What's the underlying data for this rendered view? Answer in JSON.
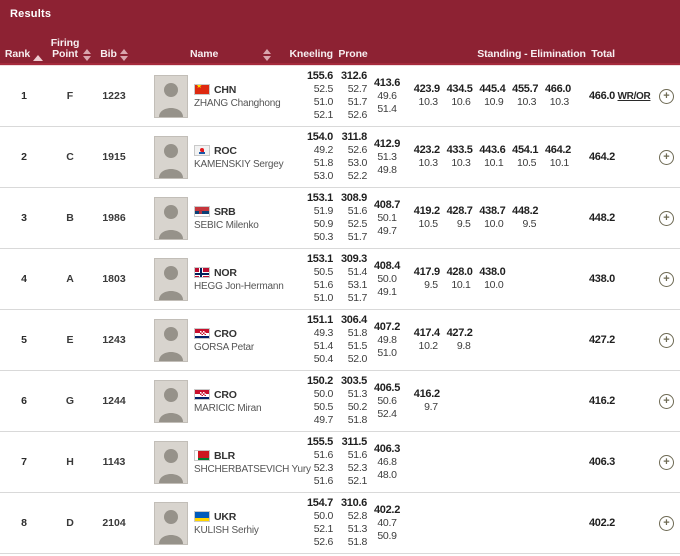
{
  "theme": {
    "header-bg": "#8d2233",
    "header-line": "#a52a3c",
    "pale-line": "#f0dde0",
    "row-line": "#d9d9d9",
    "arrow": "#d9a6ae",
    "arrow-active": "#edccd1",
    "plus": "#6e6a54",
    "num-dark": "#1f1f1f",
    "num-sub": "#3c3c3c",
    "noc-dark": "#333333",
    "name-gray": "#555555",
    "photo-bg": "#d8d4ce",
    "photo-fg": "#96928a"
  },
  "page": {
    "title": "Results"
  },
  "columns": {
    "rank": "Rank",
    "firing_point": "Firing Point",
    "bib": "Bib",
    "name": "Name",
    "kneeling": "Kneeling",
    "prone": "Prone",
    "standing": "Standing - Elimination",
    "total": "Total"
  },
  "icons": {
    "plus": "+",
    "sort": "sort-arrows"
  },
  "rows": [
    {
      "rank": "1",
      "firing_point": "F",
      "bib": "1223",
      "noc": "CHN",
      "name": "ZHANG Changhong",
      "flag": {
        "type": "china",
        "colors": {
          "bg": "#de2910",
          "star": "#ffde00"
        }
      },
      "kneeling": {
        "total": "155.6",
        "series": [
          "52.5",
          "51.0",
          "52.1"
        ]
      },
      "prone": {
        "total": "312.6",
        "series": [
          "52.7",
          "51.7",
          "52.6"
        ]
      },
      "aggregate": {
        "total": "413.6",
        "series": [
          "49.6",
          "51.4"
        ]
      },
      "elimination": [
        {
          "total": "423.9",
          "shot": "10.3"
        },
        {
          "total": "434.5",
          "shot": "10.6"
        },
        {
          "total": "445.4",
          "shot": "10.9"
        },
        {
          "total": "455.7",
          "shot": "10.3"
        },
        {
          "total": "466.0",
          "shot": "10.3"
        }
      ],
      "total": "466.0",
      "record": "WR/OR"
    },
    {
      "rank": "2",
      "firing_point": "C",
      "bib": "1915",
      "noc": "ROC",
      "name": "KAMENSKIY Sergey",
      "flag": {
        "type": "roc",
        "colors": {
          "bg": "#f2f2f2",
          "blue": "#1c57a5",
          "red": "#e4181c"
        }
      },
      "kneeling": {
        "total": "154.0",
        "series": [
          "49.2",
          "51.8",
          "53.0"
        ]
      },
      "prone": {
        "total": "311.8",
        "series": [
          "52.6",
          "53.0",
          "52.2"
        ]
      },
      "aggregate": {
        "total": "412.9",
        "series": [
          "51.3",
          "49.8"
        ]
      },
      "elimination": [
        {
          "total": "423.2",
          "shot": "10.3"
        },
        {
          "total": "433.5",
          "shot": "10.3"
        },
        {
          "total": "443.6",
          "shot": "10.1"
        },
        {
          "total": "454.1",
          "shot": "10.5"
        },
        {
          "total": "464.2",
          "shot": "10.1"
        }
      ],
      "total": "464.2",
      "record": ""
    },
    {
      "rank": "3",
      "firing_point": "B",
      "bib": "1986",
      "noc": "SRB",
      "name": "SEBIC Milenko",
      "flag": {
        "type": "serbia",
        "colors": {
          "stripes": [
            "#c6363c",
            "#0c4076",
            "#ffffff"
          ],
          "crest": "#b03040"
        }
      },
      "kneeling": {
        "total": "153.1",
        "series": [
          "51.9",
          "50.9",
          "50.3"
        ]
      },
      "prone": {
        "total": "308.9",
        "series": [
          "51.6",
          "52.5",
          "51.7"
        ]
      },
      "aggregate": {
        "total": "408.7",
        "series": [
          "50.1",
          "49.7"
        ]
      },
      "elimination": [
        {
          "total": "419.2",
          "shot": "10.5"
        },
        {
          "total": "428.7",
          "shot": "9.5"
        },
        {
          "total": "438.7",
          "shot": "10.0"
        },
        {
          "total": "448.2",
          "shot": "9.5"
        }
      ],
      "total": "448.2",
      "record": ""
    },
    {
      "rank": "4",
      "firing_point": "A",
      "bib": "1803",
      "noc": "NOR",
      "name": "HEGG Jon-Hermann",
      "flag": {
        "type": "norway",
        "colors": {
          "bg": "#ba0c2f",
          "cross_outer": "#ffffff",
          "cross_inner": "#00205b"
        }
      },
      "kneeling": {
        "total": "153.1",
        "series": [
          "50.5",
          "51.6",
          "51.0"
        ]
      },
      "prone": {
        "total": "309.3",
        "series": [
          "51.4",
          "53.1",
          "51.7"
        ]
      },
      "aggregate": {
        "total": "408.4",
        "series": [
          "50.0",
          "49.1"
        ]
      },
      "elimination": [
        {
          "total": "417.9",
          "shot": "9.5"
        },
        {
          "total": "428.0",
          "shot": "10.1"
        },
        {
          "total": "438.0",
          "shot": "10.0"
        }
      ],
      "total": "438.0",
      "record": ""
    },
    {
      "rank": "5",
      "firing_point": "E",
      "bib": "1243",
      "noc": "CRO",
      "name": "GORSA Petar",
      "flag": {
        "type": "croatia",
        "colors": {
          "stripes": [
            "#c8102e",
            "#ffffff",
            "#012169"
          ],
          "check1": "#c8102e",
          "check2": "#ffffff"
        }
      },
      "kneeling": {
        "total": "151.1",
        "series": [
          "49.3",
          "51.4",
          "50.4"
        ]
      },
      "prone": {
        "total": "306.4",
        "series": [
          "51.8",
          "51.5",
          "52.0"
        ]
      },
      "aggregate": {
        "total": "407.2",
        "series": [
          "49.8",
          "51.0"
        ]
      },
      "elimination": [
        {
          "total": "417.4",
          "shot": "10.2"
        },
        {
          "total": "427.2",
          "shot": "9.8"
        }
      ],
      "total": "427.2",
      "record": ""
    },
    {
      "rank": "6",
      "firing_point": "G",
      "bib": "1244",
      "noc": "CRO",
      "name": "MARICIC Miran",
      "flag": {
        "type": "croatia",
        "colors": {
          "stripes": [
            "#c8102e",
            "#ffffff",
            "#012169"
          ],
          "check1": "#c8102e",
          "check2": "#ffffff"
        }
      },
      "kneeling": {
        "total": "150.2",
        "series": [
          "50.0",
          "50.5",
          "49.7"
        ]
      },
      "prone": {
        "total": "303.5",
        "series": [
          "51.3",
          "50.2",
          "51.8"
        ]
      },
      "aggregate": {
        "total": "406.5",
        "series": [
          "50.6",
          "52.4"
        ]
      },
      "elimination": [
        {
          "total": "416.2",
          "shot": "9.7"
        }
      ],
      "total": "416.2",
      "record": ""
    },
    {
      "rank": "7",
      "firing_point": "H",
      "bib": "1143",
      "noc": "BLR",
      "name": "SHCHERBATSEVICH Yury",
      "flag": {
        "type": "belarus",
        "colors": {
          "red": "#ce1720",
          "green": "#007c30",
          "hoist": "#ffffff"
        }
      },
      "kneeling": {
        "total": "155.5",
        "series": [
          "51.6",
          "52.3",
          "51.6"
        ]
      },
      "prone": {
        "total": "311.5",
        "series": [
          "51.6",
          "52.3",
          "52.1"
        ]
      },
      "aggregate": {
        "total": "406.3",
        "series": [
          "46.8",
          "48.0"
        ]
      },
      "elimination": [],
      "total": "406.3",
      "record": ""
    },
    {
      "rank": "8",
      "firing_point": "D",
      "bib": "2104",
      "noc": "UKR",
      "name": "KULISH Serhiy",
      "flag": {
        "type": "ukraine",
        "colors": {
          "top": "#005bbb",
          "bottom": "#ffd500"
        }
      },
      "kneeling": {
        "total": "154.7",
        "series": [
          "50.0",
          "52.1",
          "52.6"
        ]
      },
      "prone": {
        "total": "310.6",
        "series": [
          "52.8",
          "51.3",
          "51.8"
        ]
      },
      "aggregate": {
        "total": "402.2",
        "series": [
          "40.7",
          "50.9"
        ]
      },
      "elimination": [],
      "total": "402.2",
      "record": ""
    }
  ]
}
